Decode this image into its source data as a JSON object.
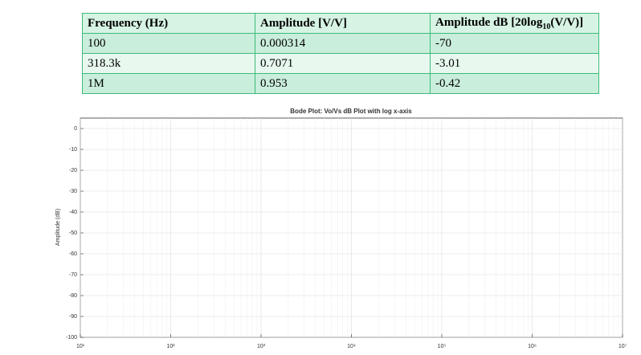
{
  "table": {
    "header": [
      "Frequency (Hz)",
      "Amplitude [V/V]",
      {
        "text": "Amplitude dB [20log",
        "sub": "10",
        "tail": "(V/V)]"
      }
    ],
    "rows": [
      [
        "100",
        "0.000314",
        "-70"
      ],
      [
        "318.3k",
        "0.7071",
        "-3.01"
      ],
      [
        "1M",
        "0.953",
        "-0.42"
      ]
    ]
  },
  "chart_data": {
    "type": "line",
    "title": "Bode Plot: Vo/Vs dB Plot with log x-axis",
    "y_label": "Amplitude (dB)",
    "series": [],
    "x_scale": "log",
    "grid": true,
    "xlim": [
      10,
      10000000
    ],
    "xticks": [
      {
        "value": 10,
        "label": "10¹"
      },
      {
        "value": 100,
        "label": "10²"
      },
      {
        "value": 1000,
        "label": "10³"
      },
      {
        "value": 10000,
        "label": "10⁴"
      },
      {
        "value": 100000,
        "label": "10⁵"
      },
      {
        "value": 1000000,
        "label": "10⁶"
      },
      {
        "value": 10000000,
        "label": "10⁷"
      }
    ],
    "ylim": [
      -100,
      5
    ],
    "yticks": [
      0,
      -10,
      -20,
      -30,
      -40,
      -50,
      -60,
      -70,
      -80,
      -90,
      -100
    ]
  }
}
